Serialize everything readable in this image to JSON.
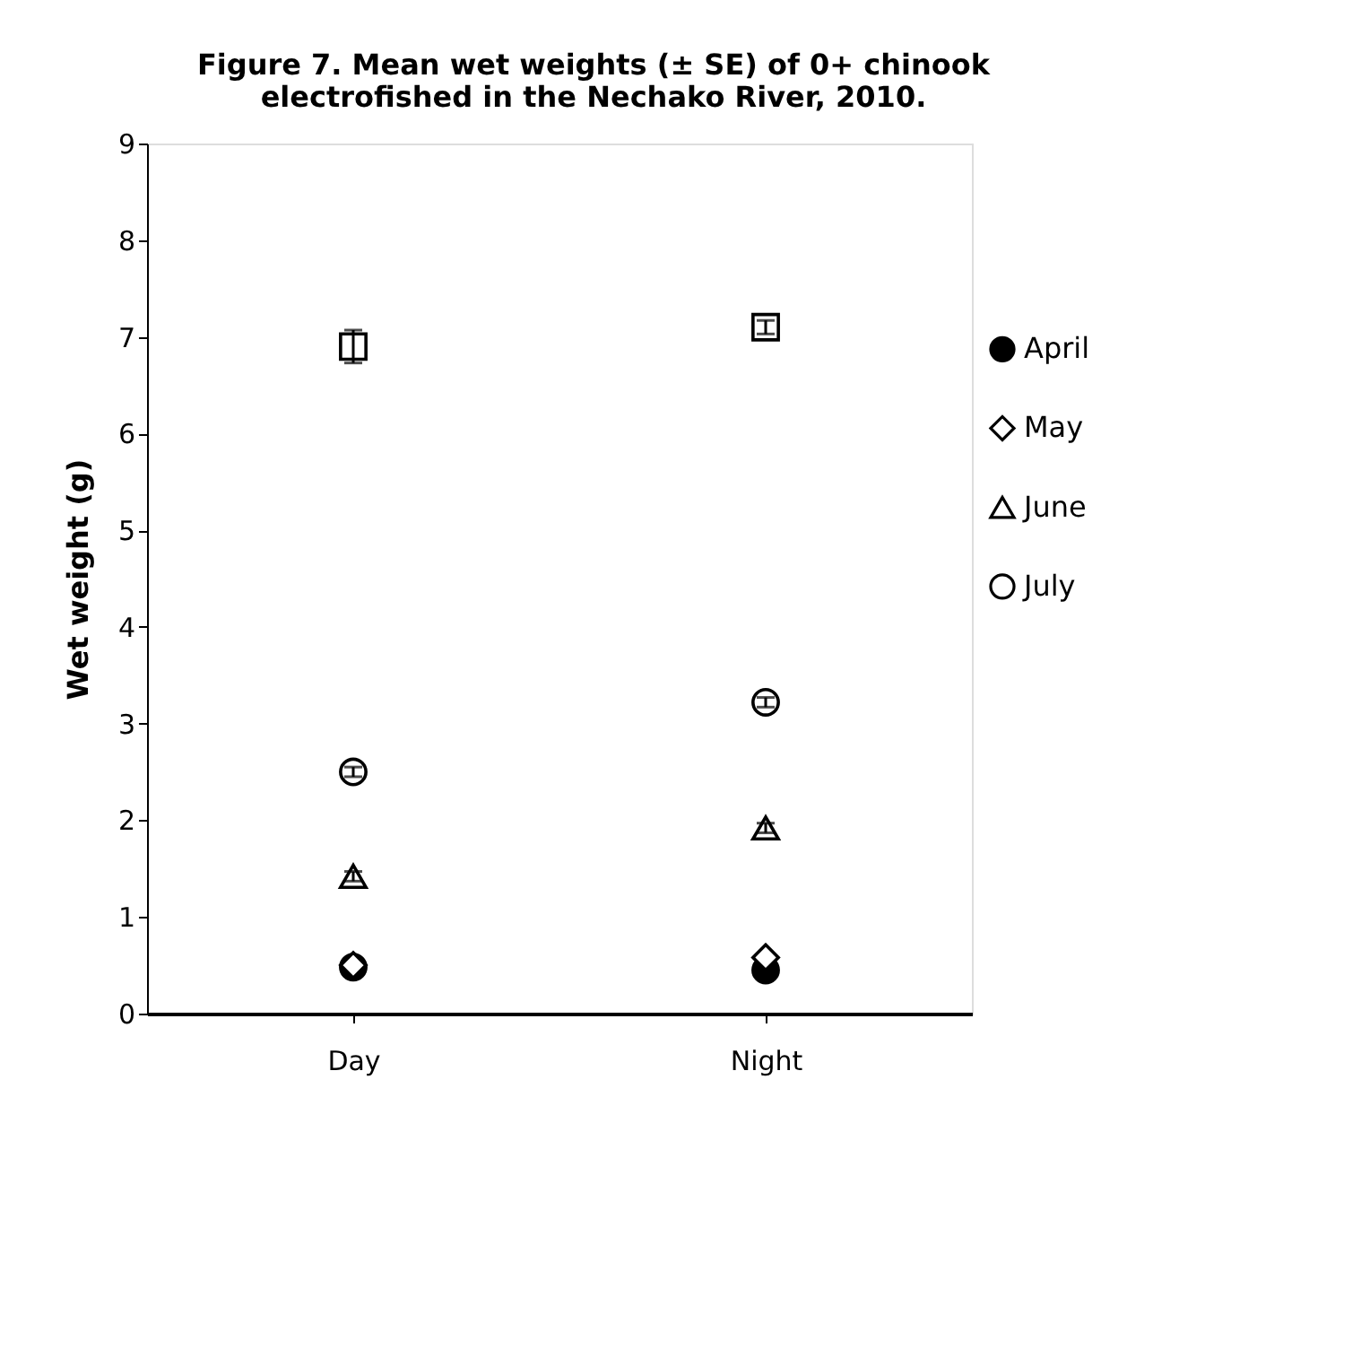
{
  "chart_data": {
    "type": "scatter",
    "title": "Figure 7.  Mean wet weights (± SE) of 0+ chinook\nelectrofished in the Nechako River, 2010.",
    "ylabel": "Wet weight (g)",
    "categories": [
      "Day",
      "Night"
    ],
    "series": [
      {
        "name": "April",
        "color": "#000000",
        "marker": "circle",
        "values": [
          0.48,
          0.45
        ]
      },
      {
        "name": "May",
        "color": "#ffffff",
        "marker": "diamond",
        "values": [
          0.5,
          0.58
        ]
      },
      {
        "name": "June",
        "color": "#ffffff",
        "marker": "triangle",
        "values": [
          1.42,
          1.92
        ],
        "errors": [
          0.05,
          0.05
        ]
      },
      {
        "name": "July",
        "color": "#ffffff",
        "marker": "circle",
        "values": [
          2.5,
          3.22
        ],
        "errors": [
          0.05,
          0.05
        ]
      },
      {
        "color": "#ffffff",
        "marker": "square",
        "values": [
          6.9,
          7.1
        ],
        "errors": [
          0.17,
          0.07
        ]
      }
    ],
    "ylim": [
      0,
      9
    ],
    "yticks": [
      0,
      1,
      2,
      3,
      4,
      5,
      6,
      7,
      8,
      9
    ],
    "grid": false,
    "legend": "right"
  }
}
